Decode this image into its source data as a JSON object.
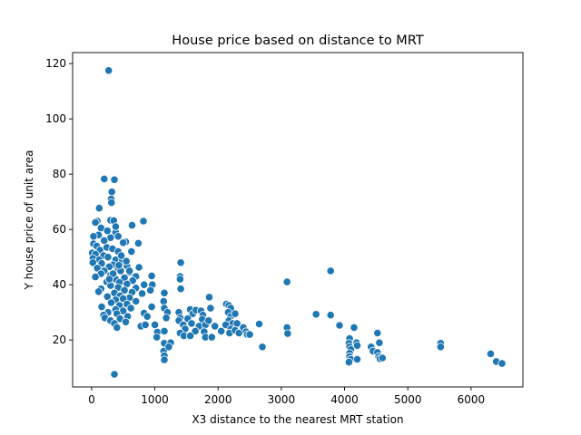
{
  "chart_data": {
    "type": "scatter",
    "title": "House price based on distance to MRT",
    "xlabel": "X3 distance to the nearest MRT station",
    "ylabel": "Y house price of unit area",
    "xlim": [
      -300,
      6820
    ],
    "ylim": [
      3,
      124
    ],
    "xticks": [
      0,
      1000,
      2000,
      3000,
      4000,
      5000,
      6000
    ],
    "yticks": [
      20,
      40,
      60,
      80,
      100,
      120
    ],
    "grid": false,
    "legend": "none",
    "marker_color": "#1f77b4",
    "marker_edge_color": "#ffffff",
    "series": [
      {
        "points": [
          [
            270,
            117.5
          ],
          [
            200,
            78.3
          ],
          [
            360,
            78.0
          ],
          [
            320,
            73.6
          ],
          [
            310,
            71.0
          ],
          [
            315,
            69.7
          ],
          [
            120,
            67.7
          ],
          [
            300,
            63.3
          ],
          [
            350,
            63.2
          ],
          [
            820,
            63.0
          ],
          [
            90,
            63.0
          ],
          [
            60,
            62.5
          ],
          [
            640,
            61.5
          ],
          [
            150,
            60.5
          ],
          [
            250,
            59.5
          ],
          [
            380,
            59.0
          ],
          [
            110,
            58.0
          ],
          [
            30,
            57.5
          ],
          [
            420,
            57.5
          ],
          [
            300,
            57.0
          ],
          [
            200,
            56.0
          ],
          [
            540,
            55.5
          ],
          [
            740,
            55.0
          ],
          [
            500,
            55.2
          ],
          [
            30,
            54.8
          ],
          [
            80,
            54.0
          ],
          [
            240,
            53.5
          ],
          [
            330,
            53.0
          ],
          [
            130,
            52.5
          ],
          [
            420,
            52.0
          ],
          [
            10,
            51.5
          ],
          [
            60,
            51.0
          ],
          [
            190,
            50.5
          ],
          [
            260,
            50.0
          ],
          [
            20,
            49.5
          ],
          [
            120,
            49.0
          ],
          [
            380,
            49.0
          ],
          [
            480,
            48.5
          ],
          [
            20,
            48.0
          ],
          [
            160,
            47.7
          ],
          [
            340,
            47.2
          ],
          [
            560,
            46.8
          ],
          [
            280,
            46.5
          ],
          [
            750,
            46.3
          ],
          [
            90,
            46.0
          ],
          [
            420,
            45.8
          ],
          [
            200,
            45.0
          ],
          [
            460,
            45.0
          ],
          [
            600,
            44.5
          ],
          [
            150,
            44.0
          ],
          [
            300,
            43.5
          ],
          [
            700,
            43.0
          ],
          [
            60,
            42.8
          ],
          [
            520,
            42.5
          ],
          [
            380,
            42.0
          ],
          [
            650,
            41.5
          ],
          [
            240,
            41.0
          ],
          [
            440,
            40.8
          ],
          [
            560,
            40.3
          ],
          [
            830,
            40.0
          ],
          [
            300,
            39.7
          ],
          [
            420,
            39.0
          ],
          [
            700,
            38.8
          ],
          [
            150,
            38.5
          ],
          [
            520,
            38.0
          ],
          [
            110,
            37.5
          ],
          [
            640,
            37.3
          ],
          [
            360,
            37.0
          ],
          [
            800,
            36.8
          ],
          [
            450,
            36.0
          ],
          [
            250,
            35.7
          ],
          [
            600,
            35.3
          ],
          [
            500,
            35.0
          ],
          [
            380,
            34.5
          ],
          [
            700,
            34.0
          ],
          [
            310,
            33.5
          ],
          [
            560,
            33.0
          ],
          [
            440,
            32.5
          ],
          [
            160,
            32.0
          ],
          [
            620,
            31.5
          ],
          [
            380,
            31.0
          ],
          [
            500,
            30.5
          ],
          [
            260,
            30.0
          ],
          [
            830,
            29.7
          ],
          [
            400,
            29.5
          ],
          [
            190,
            29.0
          ],
          [
            570,
            28.5
          ],
          [
            210,
            28.0
          ],
          [
            450,
            27.7
          ],
          [
            300,
            27.0
          ],
          [
            540,
            26.5
          ],
          [
            360,
            26.0
          ],
          [
            780,
            25.0
          ],
          [
            400,
            24.5
          ],
          [
            600,
            45.0
          ],
          [
            550,
            48.5
          ],
          [
            630,
            52.0
          ],
          [
            380,
            61.0
          ],
          [
            470,
            50.5
          ],
          [
            340,
            44.0
          ],
          [
            280,
            42.0
          ],
          [
            430,
            47.0
          ],
          [
            360,
            7.6
          ],
          [
            950,
            43.2
          ],
          [
            960,
            40.0
          ],
          [
            930,
            38.0
          ],
          [
            950,
            32.0
          ],
          [
            880,
            28.5
          ],
          [
            850,
            25.5
          ],
          [
            1000,
            25.5
          ],
          [
            1040,
            22.8
          ],
          [
            1150,
            37.0
          ],
          [
            1140,
            34.0
          ],
          [
            1150,
            31.5
          ],
          [
            1200,
            30.0
          ],
          [
            1180,
            28.0
          ],
          [
            1150,
            23.2
          ],
          [
            1150,
            18.8
          ],
          [
            1140,
            16.0
          ],
          [
            1150,
            14.3
          ],
          [
            1150,
            12.8
          ],
          [
            1250,
            19.0
          ],
          [
            1220,
            17.5
          ],
          [
            1030,
            21.0
          ],
          [
            1410,
            48.0
          ],
          [
            1400,
            43.0
          ],
          [
            1400,
            42.0
          ],
          [
            1410,
            38.5
          ],
          [
            1380,
            30.0
          ],
          [
            1400,
            28.0
          ],
          [
            1380,
            27.0
          ],
          [
            1450,
            25.5
          ],
          [
            1480,
            24.0
          ],
          [
            1400,
            22.5
          ],
          [
            1460,
            21.5
          ],
          [
            1560,
            31.0
          ],
          [
            1600,
            29.5
          ],
          [
            1650,
            30.8
          ],
          [
            1520,
            27.7
          ],
          [
            1580,
            26.0
          ],
          [
            1700,
            25.0
          ],
          [
            1640,
            23.2
          ],
          [
            1560,
            21.5
          ],
          [
            1730,
            30.5
          ],
          [
            1760,
            29.0
          ],
          [
            1750,
            27.5
          ],
          [
            1800,
            25.5
          ],
          [
            1780,
            23.0
          ],
          [
            1800,
            21.0
          ],
          [
            1860,
            35.5
          ],
          [
            1880,
            31.5
          ],
          [
            1850,
            27.0
          ],
          [
            1950,
            25.0
          ],
          [
            1900,
            21.0
          ],
          [
            2050,
            23.2
          ],
          [
            2130,
            33.0
          ],
          [
            2170,
            32.5
          ],
          [
            2200,
            31.5
          ],
          [
            2160,
            30.0
          ],
          [
            2200,
            28.5
          ],
          [
            2170,
            27.0
          ],
          [
            2230,
            26.0
          ],
          [
            2120,
            25.5
          ],
          [
            2200,
            24.0
          ],
          [
            2180,
            22.5
          ],
          [
            2270,
            29.5
          ],
          [
            2300,
            26.0
          ],
          [
            2270,
            23.5
          ],
          [
            2330,
            22.5
          ],
          [
            2400,
            24.5
          ],
          [
            2440,
            23.0
          ],
          [
            2460,
            22.0
          ],
          [
            2500,
            22.0
          ],
          [
            2650,
            25.8
          ],
          [
            2700,
            17.5
          ],
          [
            3090,
            41.0
          ],
          [
            3090,
            24.5
          ],
          [
            3100,
            22.3
          ],
          [
            3550,
            29.3
          ],
          [
            3780,
            45.0
          ],
          [
            3780,
            29.0
          ],
          [
            3920,
            25.3
          ],
          [
            4080,
            20.5
          ],
          [
            4070,
            18.8
          ],
          [
            4080,
            17.5
          ],
          [
            4100,
            16.5
          ],
          [
            4080,
            15.2
          ],
          [
            4080,
            14.0
          ],
          [
            4100,
            13.0
          ],
          [
            4070,
            12.0
          ],
          [
            4150,
            24.5
          ],
          [
            4190,
            19.0
          ],
          [
            4200,
            18.0
          ],
          [
            4200,
            13.0
          ],
          [
            4420,
            17.5
          ],
          [
            4450,
            16.0
          ],
          [
            4520,
            22.5
          ],
          [
            4550,
            19.0
          ],
          [
            4520,
            15.5
          ],
          [
            4540,
            14.0
          ],
          [
            4560,
            13.2
          ],
          [
            4600,
            13.5
          ],
          [
            5520,
            18.8
          ],
          [
            5520,
            17.5
          ],
          [
            6310,
            15.0
          ],
          [
            6400,
            12.2
          ],
          [
            6490,
            11.5
          ]
        ]
      }
    ]
  }
}
